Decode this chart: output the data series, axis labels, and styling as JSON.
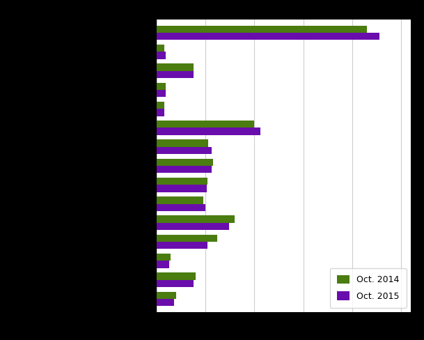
{
  "oct2014": [
    215,
    8,
    38,
    9,
    8,
    100,
    53,
    58,
    52,
    48,
    80,
    62,
    14,
    40,
    20
  ],
  "oct2015": [
    228,
    9,
    38,
    9,
    8,
    106,
    56,
    56,
    51,
    50,
    74,
    52,
    13,
    38,
    18
  ],
  "color_2014": "#4a7c10",
  "color_2015": "#6a0dad",
  "legend_2014": "Oct. 2014",
  "legend_2015": "Oct. 2015",
  "xlim_max": 260,
  "fig_background": "#000000",
  "plot_background": "#ffffff",
  "grid_color": "#cccccc",
  "bar_height": 0.38
}
